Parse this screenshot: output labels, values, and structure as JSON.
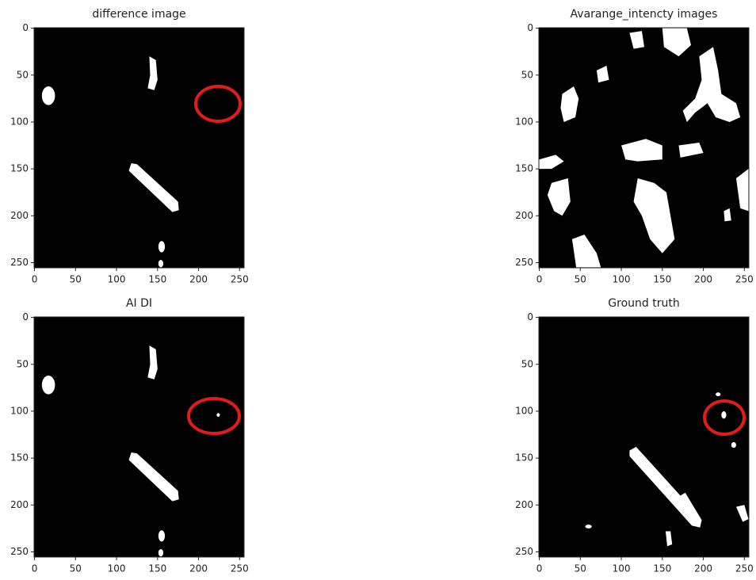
{
  "chart_data": [
    {
      "type": "image",
      "title": "difference image",
      "xlim": [
        -0.5,
        255.5
      ],
      "ylim": [
        255.5,
        -0.5
      ],
      "xticks": [
        0,
        50,
        100,
        150,
        200,
        250
      ],
      "yticks": [
        0,
        50,
        100,
        150,
        200,
        250
      ]
    },
    {
      "type": "image",
      "title": "Avarange_intencty images",
      "xlim": [
        -0.5,
        255.5
      ],
      "ylim": [
        255.5,
        -0.5
      ],
      "xticks": [
        0,
        50,
        100,
        150,
        200,
        250
      ],
      "yticks": [
        0,
        50,
        100,
        150,
        200,
        250
      ]
    },
    {
      "type": "image",
      "title": "AI DI",
      "xlim": [
        -0.5,
        255.5
      ],
      "ylim": [
        255.5,
        -0.5
      ],
      "xticks": [
        0,
        50,
        100,
        150,
        200,
        250
      ],
      "yticks": [
        0,
        50,
        100,
        150,
        200,
        250
      ]
    },
    {
      "type": "image",
      "title": "Ground truth",
      "xlim": [
        -0.5,
        255.5
      ],
      "ylim": [
        255.5,
        -0.5
      ],
      "xticks": [
        0,
        50,
        100,
        150,
        200,
        250
      ],
      "yticks": [
        0,
        50,
        100,
        150,
        200,
        250
      ]
    }
  ]
}
